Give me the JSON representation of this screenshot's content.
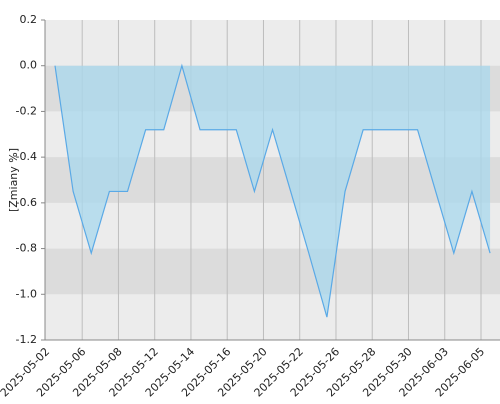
{
  "chart_data": {
    "type": "area",
    "y_label": "[Zmiany %]",
    "xtick_labels": [
      "2025-05-02",
      "2025-05-06",
      "2025-05-08",
      "2025-05-12",
      "2025-05-14",
      "2025-05-16",
      "2025-05-20",
      "2025-05-22",
      "2025-05-26",
      "2025-05-28",
      "2025-05-30",
      "2025-06-03",
      "2025-06-05"
    ],
    "values": [
      0,
      -0.55,
      -0.82,
      -0.55,
      -0.55,
      -0.28,
      -0.28,
      0,
      -0.28,
      -0.28,
      -0.28,
      -0.55,
      -0.28,
      -0.55,
      -0.82,
      -1.1,
      -0.55,
      -0.28,
      -0.28,
      -0.28,
      -0.28,
      -0.55,
      -0.82,
      -0.55,
      -0.82
    ],
    "color": "#5aa9e6",
    "fill_color": "#a8d8ee",
    "ylim": [
      -1.2,
      0.2
    ],
    "yticks": [
      0.2,
      {
        "value": 0,
        "label": "0.0"
      },
      -0.2,
      -0.4,
      -0.6,
      -0.8,
      {
        "value": -1,
        "label": "-1.0"
      },
      -1.2
    ],
    "grid": true
  }
}
